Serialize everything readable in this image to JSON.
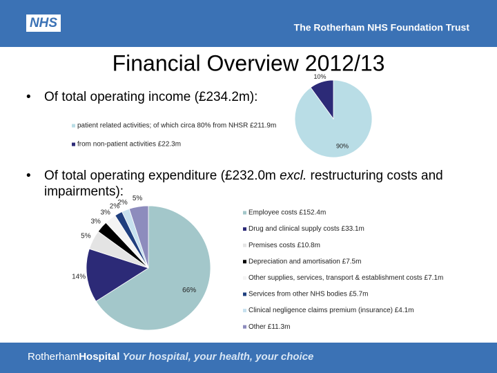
{
  "header": {
    "logo": "NHS",
    "organisation": "The Rotherham NHS Foundation Trust"
  },
  "title": "Financial Overview 2012/13",
  "bullets": [
    {
      "text": "Of total operating income (£234.2m):"
    },
    {
      "text": "Of total operating expenditure (£232.0m ",
      "emphasis": "excl.",
      "text_after": " restructuring costs and impairments):"
    }
  ],
  "chart_data": [
    {
      "type": "pie",
      "categories": [
        "patient related activities; of which circa 80% from NHSR £211.9m",
        "from non-patient activities £22.3m"
      ],
      "values": [
        90,
        10
      ],
      "value_labels": [
        "90%",
        "10%"
      ],
      "colors": [
        "#b9dde6",
        "#2c2a77"
      ]
    },
    {
      "type": "pie",
      "categories": [
        "Employee costs £152.4m",
        "Drug and clinical supply costs £33.1m",
        "Premises costs £10.8m",
        "Depreciation and amortisation £7.5m",
        "Other supplies, services, transport & establishment costs £7.1m",
        "Services from other NHS bodies £5.7m",
        "Clinical negligence claims premium (insurance) £4.1m",
        "Other £11.3m"
      ],
      "values": [
        66,
        14,
        5,
        3,
        3,
        2,
        2,
        5
      ],
      "value_labels": [
        "66%",
        "14%",
        "5%",
        "3%",
        "3%",
        "2%",
        "2%",
        "5%"
      ],
      "colors": [
        "#a3c7ca",
        "#2c2a77",
        "#e4e4e4",
        "#000000",
        "#f4f4f4",
        "#1f3f7f",
        "#c7e1ef",
        "#8d8cbd"
      ]
    }
  ],
  "footer": {
    "brand_a": "Rotherham",
    "brand_b": "Hospital",
    "tagline": "Your hospital, your health, your choice"
  }
}
